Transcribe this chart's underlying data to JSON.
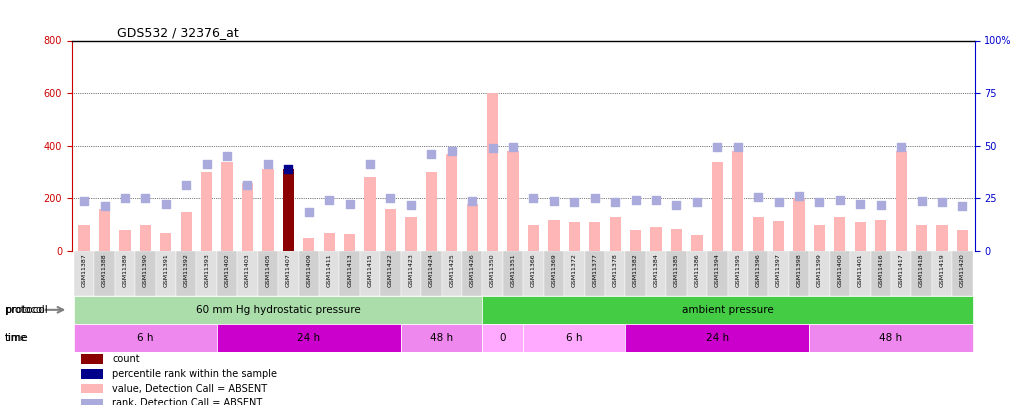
{
  "title": "GDS532 / 32376_at",
  "samples": [
    "GSM11387",
    "GSM11388",
    "GSM11389",
    "GSM11390",
    "GSM11391",
    "GSM11392",
    "GSM11393",
    "GSM11402",
    "GSM11403",
    "GSM11405",
    "GSM11407",
    "GSM11409",
    "GSM11411",
    "GSM11413",
    "GSM11415",
    "GSM11422",
    "GSM11423",
    "GSM11424",
    "GSM11425",
    "GSM11426",
    "GSM11350",
    "GSM11351",
    "GSM11366",
    "GSM11369",
    "GSM11372",
    "GSM11377",
    "GSM11378",
    "GSM11382",
    "GSM11384",
    "GSM11385",
    "GSM11386",
    "GSM11394",
    "GSM11395",
    "GSM11396",
    "GSM11397",
    "GSM11398",
    "GSM11399",
    "GSM11400",
    "GSM11401",
    "GSM11416",
    "GSM11417",
    "GSM11418",
    "GSM11419",
    "GSM11420"
  ],
  "bar_values": [
    100,
    160,
    80,
    100,
    70,
    150,
    300,
    340,
    260,
    310,
    310,
    50,
    70,
    65,
    280,
    160,
    130,
    300,
    370,
    180,
    600,
    380,
    100,
    120,
    110,
    110,
    130,
    80,
    90,
    85,
    60,
    340,
    380,
    130,
    115,
    200,
    100,
    130,
    110,
    120,
    380,
    100,
    100,
    80
  ],
  "rank_values": [
    190,
    170,
    200,
    200,
    180,
    250,
    330,
    360,
    250,
    330,
    310,
    150,
    195,
    180,
    330,
    200,
    175,
    370,
    380,
    190,
    390,
    395,
    200,
    190,
    185,
    200,
    185,
    195,
    195,
    175,
    185,
    395,
    395,
    205,
    185,
    210,
    185,
    195,
    180,
    175,
    395,
    190,
    185,
    170
  ],
  "special_bar_index": 10,
  "special_bar_color": "#8B0000",
  "normal_bar_color": "#FFB6B6",
  "rank_color": "#AAAADD",
  "special_rank_color": "#00008B",
  "ylim_left": [
    0,
    800
  ],
  "ylim_right": [
    0,
    100
  ],
  "yticks_left": [
    0,
    200,
    400,
    600,
    800
  ],
  "yticks_right": [
    0,
    25,
    50,
    75,
    100
  ],
  "protocol_regions": [
    {
      "label": "60 mm Hg hydrostatic pressure",
      "start": 0,
      "end": 20,
      "color": "#90EE90",
      "light": false
    },
    {
      "label": "ambient pressure",
      "start": 20,
      "end": 44,
      "color": "#32CD32",
      "light": false
    }
  ],
  "time_regions": [
    {
      "label": "6 h",
      "start": 0,
      "end": 7,
      "color": "#FF80FF"
    },
    {
      "label": "24 h",
      "start": 7,
      "end": 16,
      "color": "#FF40FF"
    },
    {
      "label": "48 h",
      "start": 16,
      "end": 20,
      "color": "#FF80FF"
    },
    {
      "label": "0",
      "start": 20,
      "end": 22,
      "color": "#FFB8FF"
    },
    {
      "label": "6 h",
      "start": 22,
      "end": 27,
      "color": "#FFB8FF"
    },
    {
      "label": "24 h",
      "start": 27,
      "end": 36,
      "color": "#CC00CC"
    },
    {
      "label": "48 h",
      "start": 36,
      "end": 44,
      "color": "#FF80FF"
    }
  ],
  "legend_items": [
    {
      "color": "#8B0000",
      "label": "count"
    },
    {
      "color": "#00008B",
      "label": "percentile rank within the sample"
    },
    {
      "color": "#FFB6B6",
      "label": "value, Detection Call = ABSENT"
    },
    {
      "color": "#AAAADD",
      "label": "rank, Detection Call = ABSENT"
    }
  ],
  "bg_color": "#FFFFFF",
  "grid_color": "#000000",
  "left_axis_color": "#CC0000",
  "right_axis_color": "#0000CC"
}
